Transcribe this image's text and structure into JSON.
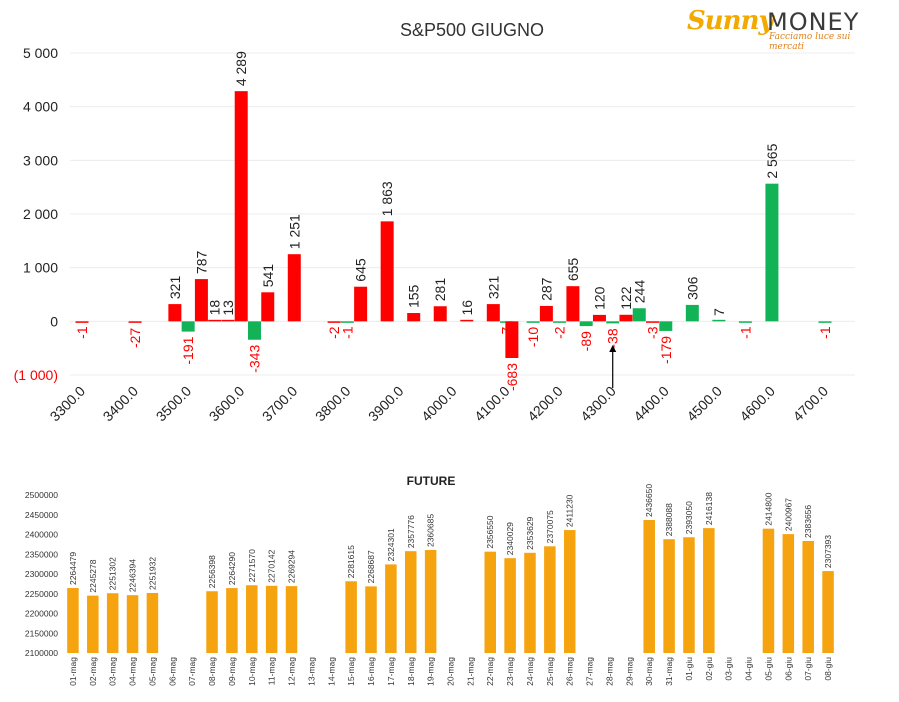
{
  "logo": {
    "brand_a": "Sunny",
    "brand_b": "MONEY",
    "tagline": "Facciamo luce sui mercati"
  },
  "chart_data": [
    {
      "type": "bar",
      "title": "S&P500 GIUGNO",
      "yticks": [
        "5 000",
        "4 000",
        "3 000",
        "2 000",
        "1 000",
        "0",
        "(1 000)"
      ],
      "ylim": [
        -1000,
        5000
      ],
      "x_range": [
        3300,
        4700
      ],
      "x_ticks": [
        3300,
        3400,
        3500,
        3600,
        3700,
        3800,
        3900,
        4000,
        4100,
        4200,
        4300,
        4400,
        4500,
        4600,
        4700
      ],
      "x_tick_labels": [
        "3300.0",
        "3400.0",
        "3500.0",
        "3600.0",
        "3700.0",
        "3800.0",
        "3900.0",
        "4000.0",
        "4100.0",
        "4200.0",
        "4300.0",
        "4400.0",
        "4500.0",
        "4600.0",
        "4700.0"
      ],
      "bars": [
        {
          "x": 3300,
          "value": -1,
          "label": "-1",
          "color": "#ff0000"
        },
        {
          "x": 3400,
          "value": -27,
          "label": "-27",
          "color": "#ff0000"
        },
        {
          "x": 3475,
          "value": 321,
          "label": "321",
          "color": "#ff0000"
        },
        {
          "x": 3500,
          "value": -191,
          "label": "-191",
          "color": "#12b356"
        },
        {
          "x": 3525,
          "value": 787,
          "label": "787",
          "color": "#ff0000"
        },
        {
          "x": 3550,
          "value": 18,
          "label": "18",
          "color": "#ff0000"
        },
        {
          "x": 3575,
          "value": 13,
          "label": "13",
          "color": "#ff0000"
        },
        {
          "x": 3600,
          "value": 4289,
          "label": "4 289",
          "color": "#ff0000"
        },
        {
          "x": 3625,
          "value": -343,
          "label": "-343",
          "color": "#12b356"
        },
        {
          "x": 3650,
          "value": 541,
          "label": "541",
          "color": "#ff0000"
        },
        {
          "x": 3700,
          "value": 1251,
          "label": "1 251",
          "color": "#ff0000"
        },
        {
          "x": 3775,
          "value": -2,
          "label": "-2",
          "color": "#ff0000"
        },
        {
          "x": 3800,
          "value": -1,
          "label": "-1",
          "color": "#12b356"
        },
        {
          "x": 3825,
          "value": 645,
          "label": "645",
          "color": "#ff0000"
        },
        {
          "x": 3875,
          "value": 1863,
          "label": "1 863",
          "color": "#ff0000"
        },
        {
          "x": 3925,
          "value": 155,
          "label": "155",
          "color": "#ff0000"
        },
        {
          "x": 3975,
          "value": 281,
          "label": "281",
          "color": "#ff0000"
        },
        {
          "x": 4025,
          "value": 16,
          "label": "16",
          "color": "#ff0000"
        },
        {
          "x": 4075,
          "value": 321,
          "label": "321",
          "color": "#ff0000"
        },
        {
          "x": 4100,
          "value": -7,
          "label": "-7",
          "color": "#12b356"
        },
        {
          "x": 4110,
          "value": -683,
          "label": "-683",
          "color": "#ff0000"
        },
        {
          "x": 4150,
          "value": -10,
          "label": "-10",
          "color": "#12b356"
        },
        {
          "x": 4175,
          "value": 287,
          "label": "287",
          "color": "#ff0000"
        },
        {
          "x": 4200,
          "value": -2,
          "label": "-2",
          "color": "#12b356"
        },
        {
          "x": 4225,
          "value": 655,
          "label": "655",
          "color": "#ff0000"
        },
        {
          "x": 4250,
          "value": -89,
          "label": "-89",
          "color": "#12b356"
        },
        {
          "x": 4275,
          "value": 120,
          "label": "120",
          "color": "#ff0000"
        },
        {
          "x": 4300,
          "value": -38,
          "label": "-38",
          "color": "#12b356"
        },
        {
          "x": 4325,
          "value": 122,
          "label": "122",
          "color": "#ff0000"
        },
        {
          "x": 4350,
          "value": 244,
          "label": "244",
          "color": "#12b356"
        },
        {
          "x": 4375,
          "value": -3,
          "label": "-3",
          "color": "#ff0000"
        },
        {
          "x": 4400,
          "value": -179,
          "label": "-179",
          "color": "#12b356"
        },
        {
          "x": 4450,
          "value": 306,
          "label": "306",
          "color": "#12b356"
        },
        {
          "x": 4500,
          "value": 7,
          "label": "7",
          "color": "#12b356"
        },
        {
          "x": 4550,
          "value": -1,
          "label": "-1",
          "color": "#12b356"
        },
        {
          "x": 4600,
          "value": 2565,
          "label": "2 565",
          "color": "#12b356"
        },
        {
          "x": 4700,
          "value": -1,
          "label": "-1",
          "color": "#12b356"
        }
      ],
      "marker_x": 4300,
      "colors": {
        "put": "#ff0000",
        "call": "#12b356",
        "neg_label": "#ff0000"
      }
    },
    {
      "type": "bar",
      "title": "FUTURE",
      "ylim": [
        2100000,
        2500000
      ],
      "yticks": [
        "2500000",
        "2450000",
        "2400000",
        "2350000",
        "2300000",
        "2250000",
        "2200000",
        "2150000",
        "2100000"
      ],
      "categories": [
        "01-mag",
        "02-mag",
        "03-mag",
        "04-mag",
        "05-mag",
        "06-mag",
        "07-mag",
        "08-mag",
        "09-mag",
        "10-mag",
        "11-mag",
        "12-mag",
        "13-mag",
        "14-mag",
        "15-mag",
        "16-mag",
        "17-mag",
        "18-mag",
        "19-mag",
        "20-mag",
        "21-mag",
        "22-mag",
        "23-mag",
        "24-mag",
        "25-mag",
        "26-mag",
        "27-mag",
        "28-mag",
        "29-mag",
        "30-mag",
        "31-mag",
        "01-giu",
        "02-giu",
        "03-giu",
        "04-giu",
        "05-giu",
        "06-giu",
        "07-giu",
        "08-giu"
      ],
      "values": [
        2264479,
        2245278,
        2251302,
        2246394,
        2251932,
        null,
        null,
        2256398,
        2264290,
        2271570,
        2270142,
        2269294,
        null,
        null,
        2281615,
        2268687,
        2324301,
        2357776,
        2360685,
        null,
        null,
        2356550,
        2340029,
        2353629,
        2370075,
        2411230,
        null,
        null,
        null,
        2436650,
        2388088,
        2393050,
        2416138,
        null,
        null,
        2414800,
        2400967,
        2383656,
        2307393
      ],
      "colors": {
        "bar": "#f5a30f"
      }
    }
  ]
}
